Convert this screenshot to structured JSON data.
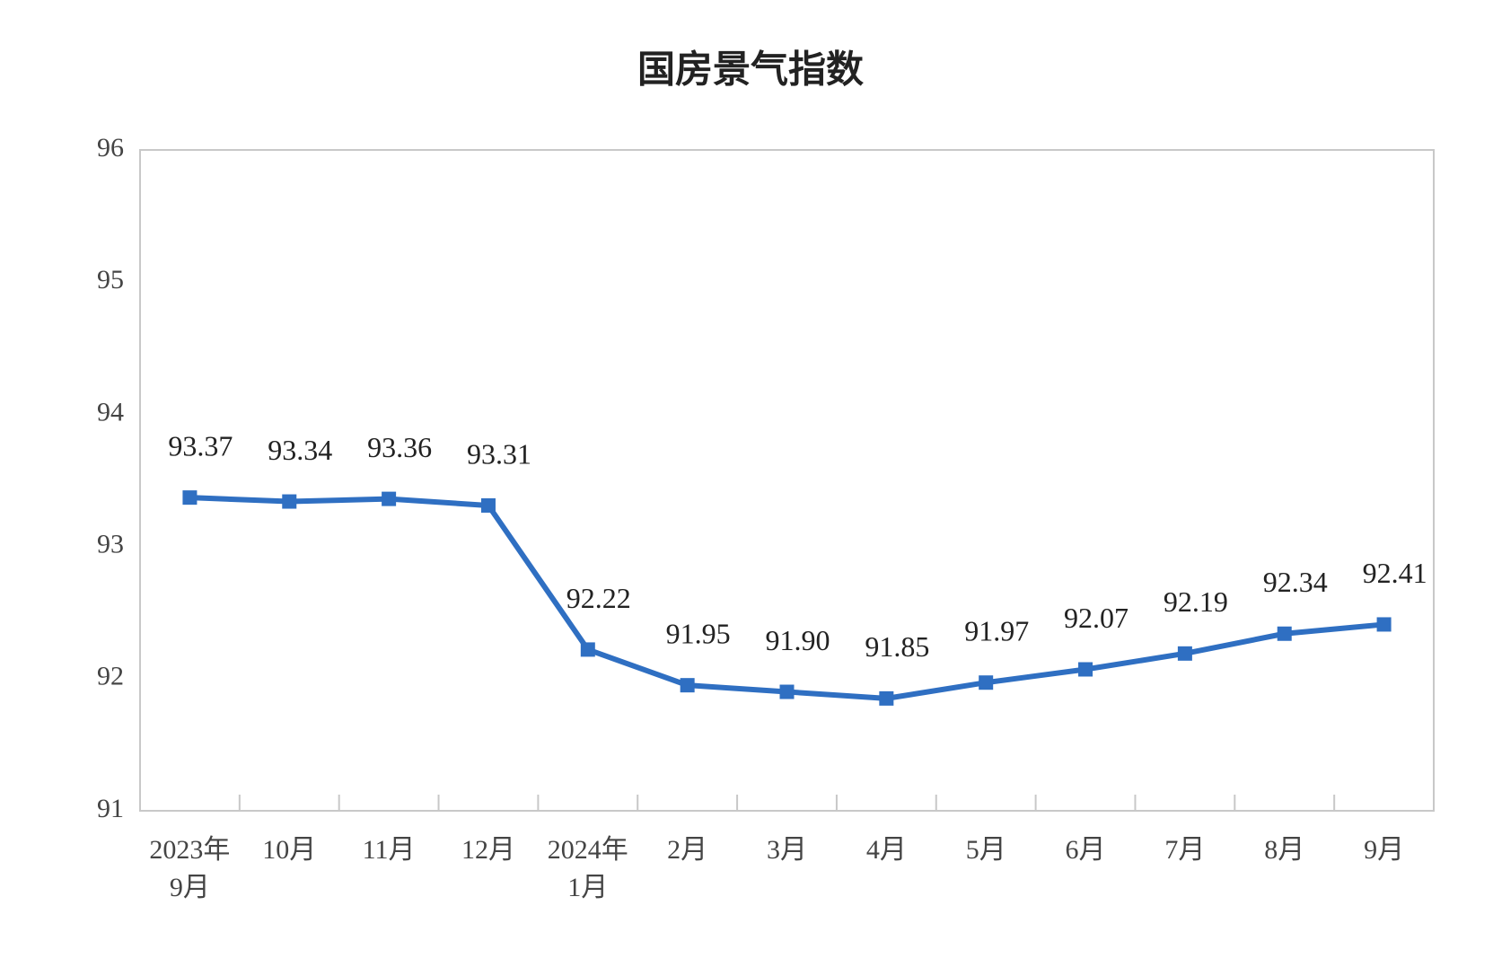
{
  "chart_data": {
    "type": "line",
    "title": "国房景气指数",
    "categories": [
      [
        "2023年",
        "9月"
      ],
      [
        "10月"
      ],
      [
        "11月"
      ],
      [
        "12月"
      ],
      [
        "2024年",
        "1月"
      ],
      [
        "2月"
      ],
      [
        "3月"
      ],
      [
        "4月"
      ],
      [
        "5月"
      ],
      [
        "6月"
      ],
      [
        "7月"
      ],
      [
        "8月"
      ],
      [
        "9月"
      ]
    ],
    "values": [
      93.37,
      93.34,
      93.36,
      93.31,
      92.22,
      91.95,
      91.9,
      91.85,
      91.97,
      92.07,
      92.19,
      92.34,
      92.41
    ],
    "value_labels": [
      "93.37",
      "93.34",
      "93.36",
      "93.31",
      "92.22",
      "91.95",
      "91.90",
      "91.85",
      "91.97",
      "92.07",
      "92.19",
      "92.34",
      "92.41"
    ],
    "color": "#2f6fc2",
    "ylim": [
      91,
      96
    ],
    "yticks": [
      91,
      92,
      93,
      94,
      95,
      96
    ],
    "grid": false
  }
}
